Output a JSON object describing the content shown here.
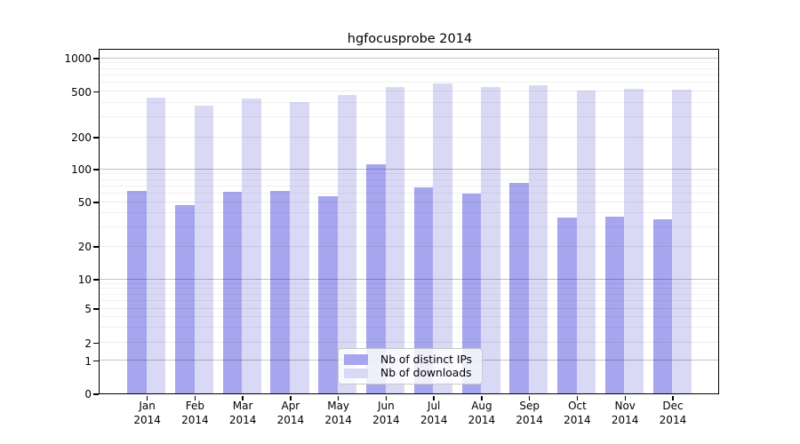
{
  "chart_data": {
    "type": "bar",
    "title": "hgfocusprobe 2014",
    "year_label": "2014",
    "categories": [
      "Jan",
      "Feb",
      "Mar",
      "Apr",
      "May",
      "Jun",
      "Jul",
      "Aug",
      "Sep",
      "Oct",
      "Nov",
      "Dec"
    ],
    "series": [
      {
        "name": "Nb of distinct IPs",
        "color": "#a6a6ef",
        "values": [
          63,
          47,
          62,
          63,
          56,
          110,
          68,
          59,
          74,
          36,
          37,
          35
        ]
      },
      {
        "name": "Nb of downloads",
        "color": "#d9d9f6",
        "values": [
          440,
          375,
          430,
          400,
          465,
          550,
          585,
          545,
          565,
          510,
          530,
          512
        ]
      }
    ],
    "y_ticks": [
      0,
      1,
      2,
      5,
      10,
      20,
      50,
      100,
      200,
      500,
      1000
    ],
    "y_major_ticks": [
      1,
      10,
      100,
      1000
    ],
    "y_minor_ticks": [
      3,
      4,
      6,
      7,
      8,
      9,
      30,
      40,
      60,
      70,
      80,
      90,
      300,
      400,
      600,
      700,
      800,
      900
    ],
    "scale": "symlog",
    "ylim": [
      0,
      1000
    ],
    "grid": true,
    "legend_position": "bottom-center"
  }
}
